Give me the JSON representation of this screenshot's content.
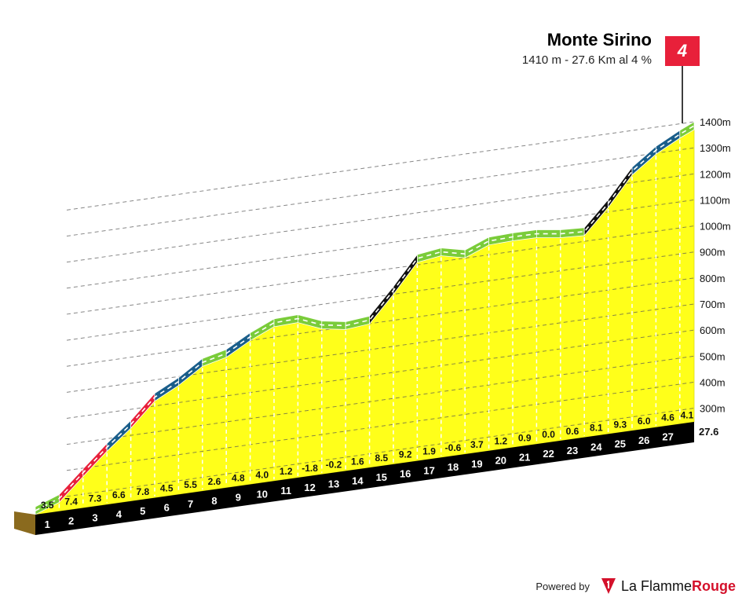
{
  "climb": {
    "name": "Monte Sirino",
    "summary": "1410 m - 27.6 Km al 4 %",
    "category": "4"
  },
  "footer": {
    "powered_label": "Powered by",
    "brand_part1": "La Flamme",
    "brand_part2": "Rouge"
  },
  "chart_data": {
    "type": "area",
    "x_unit": "km",
    "y_unit": "m",
    "km_markers": [
      "1",
      "2",
      "3",
      "4",
      "5",
      "6",
      "7",
      "8",
      "9",
      "10",
      "11",
      "12",
      "13",
      "14",
      "15",
      "16",
      "17",
      "18",
      "19",
      "20",
      "21",
      "22",
      "23",
      "24",
      "25",
      "26",
      "27"
    ],
    "total_distance_label": "27.6",
    "gradients": [
      3.5,
      7.4,
      7.3,
      6.6,
      7.8,
      4.5,
      5.5,
      2.6,
      4.8,
      4.0,
      1.2,
      -1.8,
      -0.2,
      1.6,
      8.5,
      9.2,
      1.9,
      -0.6,
      3.7,
      1.2,
      0.9,
      0.0,
      0.6,
      8.1,
      9.3,
      6.0,
      4.6,
      4.1
    ],
    "gradient_labels": [
      "3.5",
      "7.4",
      "7.3",
      "6.6",
      "7.8",
      "4.5",
      "5.5",
      "2.6",
      "4.8",
      "4.0",
      "1.2",
      "-1.8",
      "-0.2",
      "1.6",
      "8.5",
      "9.2",
      "1.9",
      "-0.6",
      "3.7",
      "1.2",
      "0.9",
      "0.0",
      "0.6",
      "8.1",
      "9.3",
      "6.0",
      "4.6",
      "4.1"
    ],
    "altitude_ticks": [
      "300m",
      "400m",
      "500m",
      "600m",
      "700m",
      "800m",
      "900m",
      "1000m",
      "1100m",
      "1200m",
      "1300m",
      "1400m"
    ],
    "y_range": [
      300,
      1400
    ],
    "finish_altitude": 1410,
    "colors": {
      "profile_fill": "#ffff1a",
      "base_fill": "#000000",
      "start_block": "#8a6a1e",
      "grade_0_4": "#7acc3a",
      "grade_4_7": "#1a5e8a",
      "grade_7_8": "#e8203a",
      "grade_8_plus": "#111111",
      "category_flag": "#e8203a"
    }
  }
}
